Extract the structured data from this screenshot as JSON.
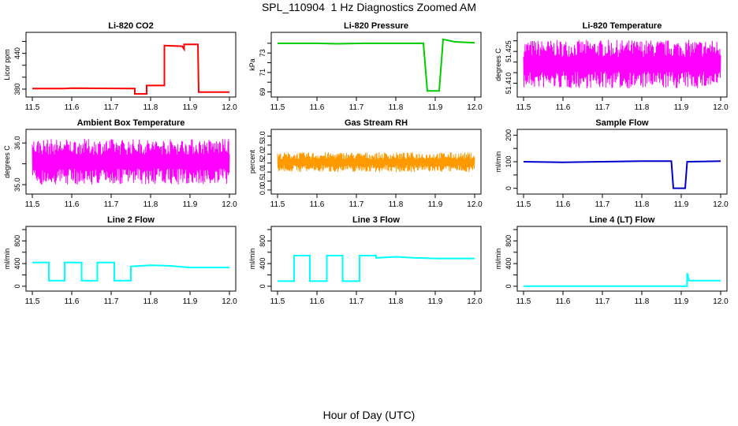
{
  "figure": {
    "title": "SPL_110904  1 Hz Diagnostics Zoomed AM",
    "xlabel": "Hour of Day (UTC)"
  },
  "chart_data": [
    {
      "type": "line",
      "title": "Li-820 CO2",
      "ylabel": "Licor ppm",
      "color": "#ff0000",
      "xlim": [
        11.5,
        12.0
      ],
      "ylim": [
        372,
        470
      ],
      "xticks": [
        "11.5",
        "11.6",
        "11.7",
        "11.8",
        "11.9",
        "12.0"
      ],
      "yticks": [
        {
          "v": 380,
          "label": "380"
        },
        {
          "v": 440,
          "label": "440"
        }
      ],
      "yminor": [
        400,
        420,
        460
      ],
      "series": [
        {
          "values": [
            [
              11.5,
              381
            ],
            [
              11.58,
              381
            ],
            [
              11.6,
              381.5
            ],
            [
              11.76,
              381
            ],
            [
              11.76,
              372
            ],
            [
              11.79,
              372
            ],
            [
              11.79,
              386
            ],
            [
              11.835,
              386
            ],
            [
              11.835,
              453
            ],
            [
              11.88,
              452
            ],
            [
              11.885,
              447
            ],
            [
              11.885,
              455
            ],
            [
              11.92,
              455
            ],
            [
              11.922,
              375
            ],
            [
              11.98,
              375
            ],
            [
              12.0,
              375
            ]
          ]
        }
      ]
    },
    {
      "type": "line",
      "title": "Li-820 Pressure",
      "ylabel": "kPa",
      "color": "#00cc00",
      "xlim": [
        11.5,
        12.0
      ],
      "ylim": [
        68.8,
        74.8
      ],
      "xticks": [
        "11.5",
        "11.6",
        "11.7",
        "11.8",
        "11.9",
        "12.0"
      ],
      "yticks": [
        {
          "v": 69,
          "label": "69"
        },
        {
          "v": 71,
          "label": "71"
        },
        {
          "v": 73,
          "label": "73"
        }
      ],
      "yminor": [
        70,
        72,
        74
      ],
      "series": [
        {
          "values": [
            [
              11.5,
              74.0
            ],
            [
              11.6,
              74.0
            ],
            [
              11.65,
              73.95
            ],
            [
              11.72,
              74.0
            ],
            [
              11.8,
              74.0
            ],
            [
              11.87,
              74.0
            ],
            [
              11.88,
              69.1
            ],
            [
              11.91,
              69.1
            ],
            [
              11.92,
              74.4
            ],
            [
              11.95,
              74.15
            ],
            [
              12.0,
              74.05
            ]
          ]
        }
      ]
    },
    {
      "type": "line",
      "title": "Li-820 Temperature",
      "ylabel": "degrees C",
      "color": "#ff00ff",
      "xlim": [
        11.5,
        12.0
      ],
      "ylim": [
        51.405,
        51.4325
      ],
      "xticks": [
        "11.5",
        "11.6",
        "11.7",
        "11.8",
        "11.9",
        "12.0"
      ],
      "yticks": [
        {
          "v": 51.41,
          "label": "51.410"
        },
        {
          "v": 51.425,
          "label": "51.425"
        }
      ],
      "yminor": [
        51.415,
        51.42,
        51.43
      ],
      "series": [
        {
          "values": [
            [
              11.5,
              51.4075
            ],
            [
              11.5,
              51.4305
            ],
            [
              12.0,
              51.4305
            ],
            [
              12.0,
              51.4075
            ]
          ]
        }
      ]
    },
    {
      "type": "line",
      "title": "Ambient Box Temperature",
      "ylabel": "degrees C",
      "color": "#ff00ff",
      "xlim": [
        11.5,
        12.0
      ],
      "ylim": [
        34.85,
        36.25
      ],
      "xticks": [
        "11.5",
        "11.6",
        "11.7",
        "11.8",
        "11.9",
        "12.0"
      ],
      "yticks": [
        {
          "v": 35.0,
          "label": "35.0"
        },
        {
          "v": 36.0,
          "label": "36.0"
        }
      ],
      "yminor": [
        35.5
      ],
      "series": [
        {
          "values": [
            [
              11.5,
              35.0
            ],
            [
              11.5,
              36.1
            ],
            [
              12.0,
              36.1
            ],
            [
              12.0,
              35.0
            ]
          ]
        }
      ]
    },
    {
      "type": "line",
      "title": "Gas Stream RH",
      "ylabel": "percent",
      "color": "#ff9900",
      "xlim": [
        11.5,
        12.0
      ],
      "ylim": [
        -0.05,
        3.2
      ],
      "xticks": [
        "11.5",
        "11.6",
        "11.7",
        "11.8",
        "11.9",
        "12.0"
      ],
      "yticks": [
        {
          "v": 0.0,
          "label": "0.0"
        },
        {
          "v": 0.5,
          "label": "0.5"
        },
        {
          "v": 1.0,
          "label": "1.0"
        },
        {
          "v": 1.5,
          "label": "1.5"
        },
        {
          "v": 2.0,
          "label": "2.0"
        },
        {
          "v": 2.5,
          "label": "2.5"
        },
        {
          "v": 3.0,
          "label": "3.0"
        }
      ],
      "yminor": [],
      "series": [
        {
          "values": [
            [
              11.5,
              1.0
            ],
            [
              11.5,
              2.1
            ],
            [
              12.0,
              2.1
            ],
            [
              12.0,
              1.0
            ]
          ]
        }
      ]
    },
    {
      "type": "line",
      "title": "Sample Flow",
      "ylabel": "ml/min",
      "color": "#0000cc",
      "xlim": [
        11.5,
        12.0
      ],
      "ylim": [
        -10,
        210
      ],
      "xticks": [
        "11.5",
        "11.6",
        "11.7",
        "11.8",
        "11.9",
        "12.0"
      ],
      "yticks": [
        {
          "v": 0,
          "label": "0"
        },
        {
          "v": 100,
          "label": "100"
        },
        {
          "v": 200,
          "label": "200"
        }
      ],
      "yminor": [
        50,
        150
      ],
      "series": [
        {
          "values": [
            [
              11.5,
              100
            ],
            [
              11.6,
              98
            ],
            [
              11.7,
              100
            ],
            [
              11.8,
              102
            ],
            [
              11.875,
              102
            ],
            [
              11.88,
              0
            ],
            [
              11.91,
              0
            ],
            [
              11.915,
              100
            ],
            [
              11.95,
              101
            ],
            [
              12.0,
              102
            ]
          ]
        }
      ]
    },
    {
      "type": "line",
      "title": "Line 2 Flow",
      "ylabel": "ml/min",
      "color": "#00ffff",
      "xlim": [
        11.5,
        12.0
      ],
      "ylim": [
        -30,
        1000
      ],
      "xticks": [
        "11.5",
        "11.6",
        "11.7",
        "11.8",
        "11.9",
        "12.0"
      ],
      "yticks": [
        {
          "v": 0,
          "label": "0"
        },
        {
          "v": 400,
          "label": "400"
        },
        {
          "v": 800,
          "label": "800"
        }
      ],
      "yminor": [
        200,
        600,
        1000
      ],
      "series": [
        {
          "values": [
            [
              11.5,
              420
            ],
            [
              11.542,
              420
            ],
            [
              11.542,
              100
            ],
            [
              11.582,
              100
            ],
            [
              11.582,
              420
            ],
            [
              11.625,
              420
            ],
            [
              11.625,
              100
            ],
            [
              11.665,
              100
            ],
            [
              11.665,
              420
            ],
            [
              11.708,
              420
            ],
            [
              11.708,
              100
            ],
            [
              11.75,
              100
            ],
            [
              11.75,
              350
            ],
            [
              11.8,
              370
            ],
            [
              11.85,
              360
            ],
            [
              11.9,
              330
            ],
            [
              12.0,
              330
            ]
          ]
        }
      ]
    },
    {
      "type": "line",
      "title": "Line 3 Flow",
      "ylabel": "ml/min",
      "color": "#00ffff",
      "xlim": [
        11.5,
        12.0
      ],
      "ylim": [
        -30,
        1000
      ],
      "xticks": [
        "11.5",
        "11.6",
        "11.7",
        "11.8",
        "11.9",
        "12.0"
      ],
      "yticks": [
        {
          "v": 0,
          "label": "0"
        },
        {
          "v": 400,
          "label": "400"
        },
        {
          "v": 800,
          "label": "800"
        }
      ],
      "yminor": [
        200,
        600,
        1000
      ],
      "series": [
        {
          "values": [
            [
              11.5,
              90
            ],
            [
              11.542,
              90
            ],
            [
              11.542,
              540
            ],
            [
              11.582,
              540
            ],
            [
              11.582,
              90
            ],
            [
              11.625,
              90
            ],
            [
              11.625,
              540
            ],
            [
              11.665,
              540
            ],
            [
              11.665,
              90
            ],
            [
              11.708,
              90
            ],
            [
              11.708,
              540
            ],
            [
              11.75,
              540
            ],
            [
              11.75,
              500
            ],
            [
              11.8,
              520
            ],
            [
              11.85,
              500
            ],
            [
              11.9,
              490
            ],
            [
              12.0,
              490
            ]
          ]
        }
      ]
    },
    {
      "type": "line",
      "title": "Line 4 (LT) Flow",
      "ylabel": "ml/min",
      "color": "#00ffff",
      "xlim": [
        11.5,
        12.0
      ],
      "ylim": [
        -30,
        1000
      ],
      "xticks": [
        "11.5",
        "11.6",
        "11.7",
        "11.8",
        "11.9",
        "12.0"
      ],
      "yticks": [
        {
          "v": 0,
          "label": "0"
        },
        {
          "v": 400,
          "label": "400"
        },
        {
          "v": 800,
          "label": "800"
        }
      ],
      "yminor": [
        200,
        600,
        1000
      ],
      "series": [
        {
          "values": [
            [
              11.5,
              0
            ],
            [
              11.915,
              0
            ],
            [
              11.915,
              230
            ],
            [
              11.92,
              100
            ],
            [
              12.0,
              100
            ]
          ]
        }
      ]
    }
  ]
}
